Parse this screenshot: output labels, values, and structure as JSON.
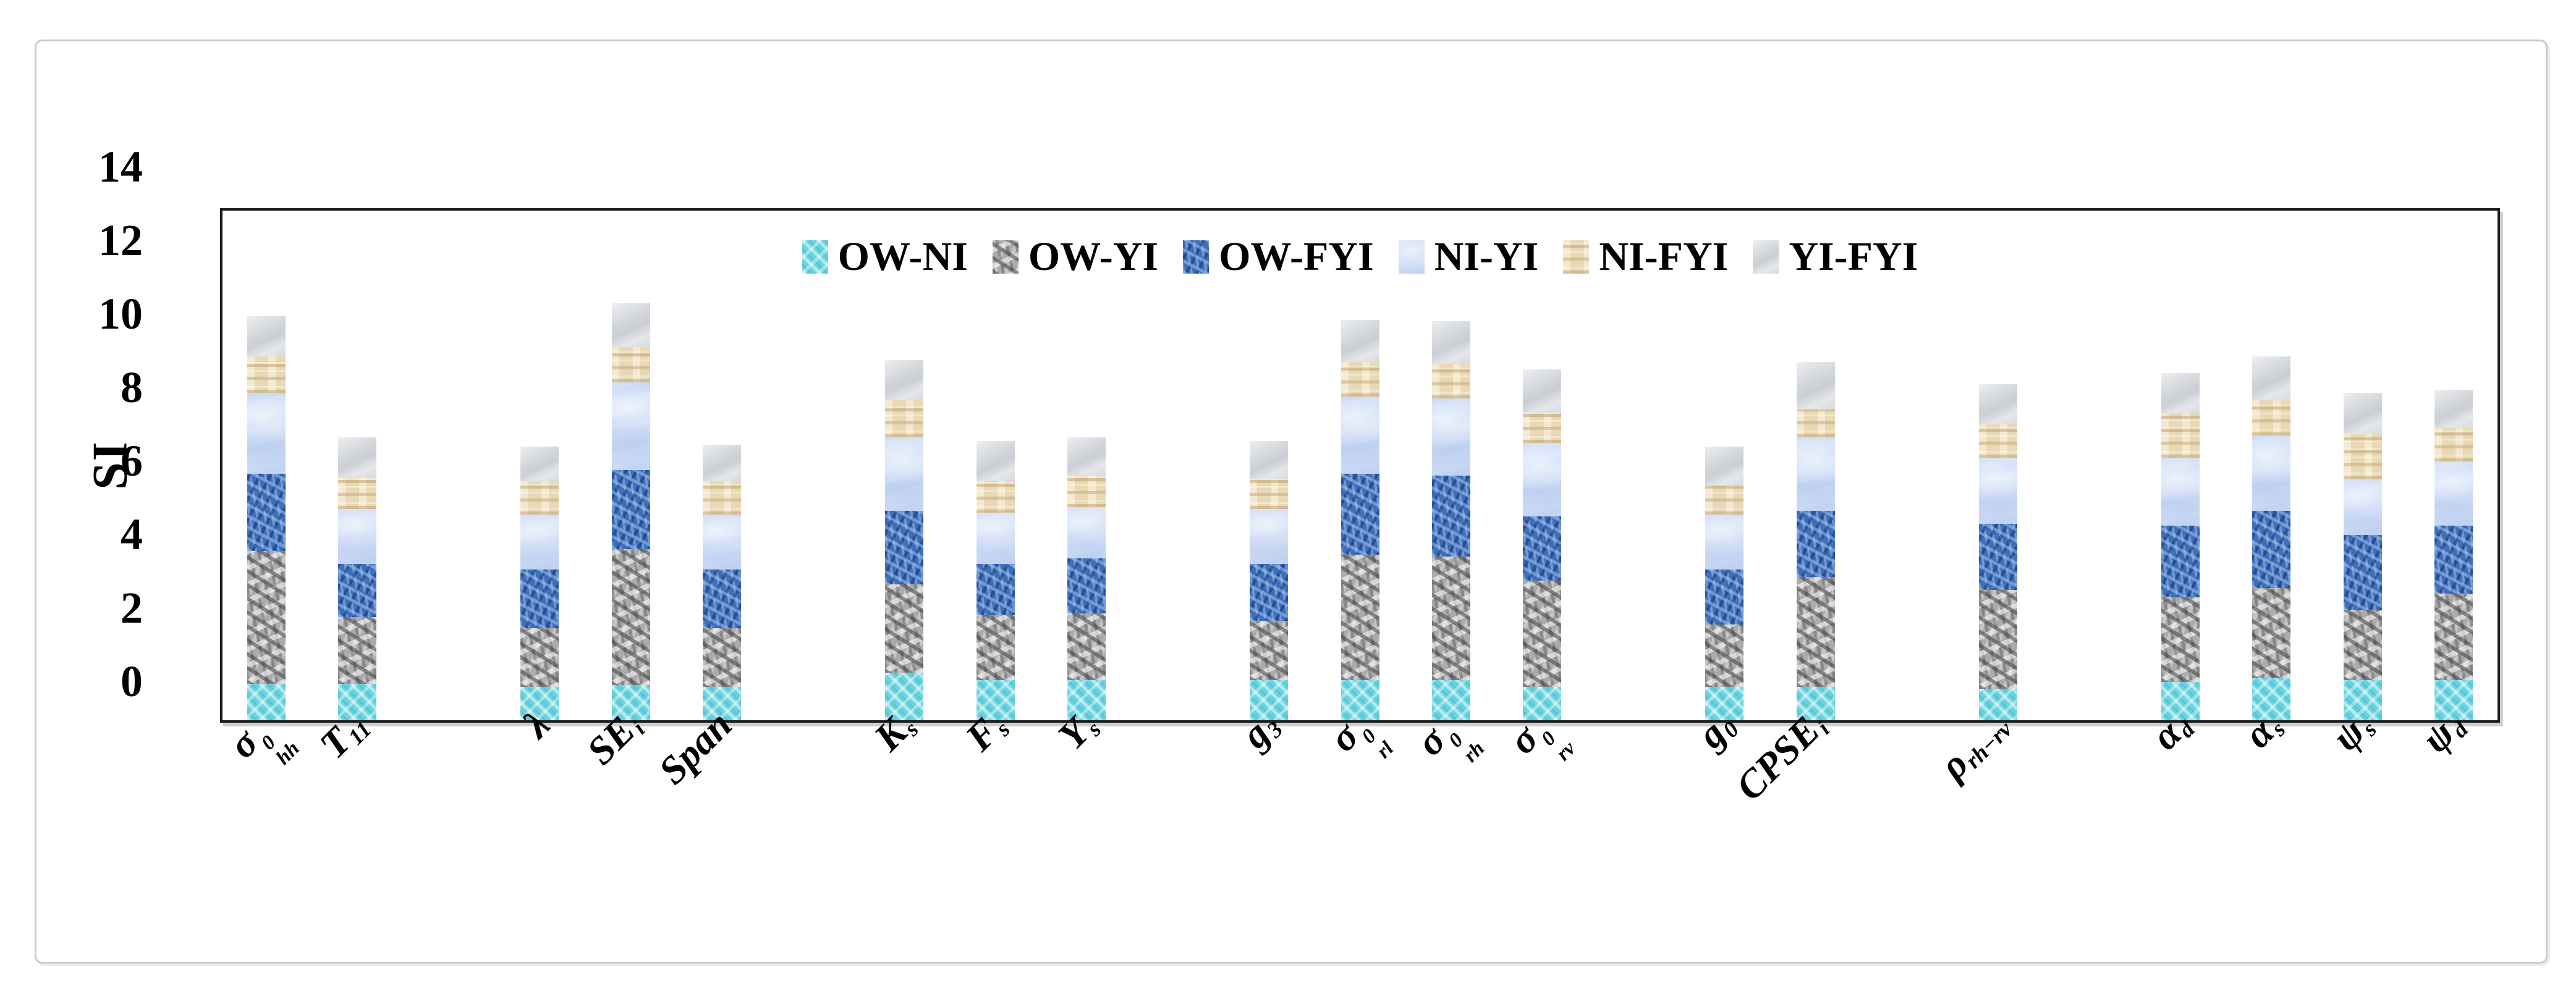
{
  "figure": {
    "kind": "stacked-bar-sensitivity-figure"
  },
  "axis": {
    "y_title": "SI"
  },
  "chart_data": {
    "type": "bar",
    "stacked": true,
    "title": "",
    "xlabel": "",
    "ylabel": "SI",
    "ylim": [
      0,
      14
    ],
    "ytick_step": 2,
    "yticks": [
      0,
      2,
      4,
      6,
      8,
      10,
      12,
      14
    ],
    "grid": false,
    "legend_position": "top-center-inside",
    "categories": [
      "σ0hh",
      "T11",
      "λ",
      "SEi",
      "Span",
      "Ks",
      "Fs",
      "Ys",
      "g3",
      "σ0rl",
      "σ0rh",
      "σ0rv",
      "g0",
      "CPSEi",
      "ρrh−rv",
      "αd",
      "αs",
      "ψs",
      "ψd"
    ],
    "categories_rich": [
      {
        "base": "σ",
        "sup": "0",
        "sub": "hh",
        "slot": 0
      },
      {
        "base": "T",
        "sub": "11",
        "slot": 1
      },
      {
        "base": "λ",
        "slot": 3
      },
      {
        "base": "SE",
        "sub": "i",
        "slot": 4
      },
      {
        "base": "Span",
        "slot": 5
      },
      {
        "base": "K",
        "sub": "s",
        "slot": 7
      },
      {
        "base": "F",
        "sub": "s",
        "slot": 8
      },
      {
        "base": "Y",
        "sub": "s",
        "slot": 9
      },
      {
        "base": "g",
        "sub": "3",
        "slot": 11
      },
      {
        "base": "σ",
        "sup": "0",
        "sub": "rl",
        "slot": 12
      },
      {
        "base": "σ",
        "sup": "0",
        "sub": "rh",
        "slot": 13
      },
      {
        "base": "σ",
        "sup": "0",
        "sub": "rv",
        "slot": 14
      },
      {
        "base": "g",
        "sub": "0",
        "slot": 16
      },
      {
        "base": "CPSE",
        "sub": "i",
        "slot": 17
      },
      {
        "base": "ρ",
        "sub": "rh−rv",
        "slot": 19
      },
      {
        "base": "α",
        "sub": "d",
        "slot": 21
      },
      {
        "base": "α",
        "sub": "s",
        "slot": 22
      },
      {
        "base": "ψ",
        "sub": "s",
        "slot": 23
      },
      {
        "base": "ψ",
        "sub": "d",
        "slot": 24
      }
    ],
    "series": [
      {
        "name": "OW-NI",
        "key": "ow-ni",
        "color": "#68d3e0",
        "values": [
          1.0,
          1.0,
          0.9,
          0.95,
          0.9,
          1.3,
          1.1,
          1.1,
          1.1,
          1.1,
          1.1,
          0.9,
          0.9,
          0.9,
          0.85,
          1.05,
          1.15,
          1.1,
          1.1
        ]
      },
      {
        "name": "OW-YI",
        "key": "ow-yi",
        "color": "#ababab",
        "values": [
          3.6,
          1.8,
          1.6,
          3.7,
          1.6,
          2.4,
          1.75,
          1.8,
          1.6,
          3.4,
          3.35,
          2.9,
          1.7,
          3.0,
          2.7,
          2.3,
          2.45,
          1.9,
          2.35
        ]
      },
      {
        "name": "OW-FYI",
        "key": "ow-fyi",
        "color": "#3d6fba",
        "values": [
          2.1,
          1.45,
          1.6,
          2.15,
          1.6,
          2.0,
          1.4,
          1.5,
          1.55,
          2.2,
          2.2,
          1.75,
          1.5,
          1.8,
          1.8,
          1.95,
          2.1,
          2.05,
          1.85
        ]
      },
      {
        "name": "NI-YI",
        "key": "ni-yi",
        "color": "#cfdef6",
        "values": [
          2.2,
          1.5,
          1.5,
          2.4,
          1.5,
          2.0,
          1.4,
          1.4,
          1.5,
          2.1,
          2.1,
          2.0,
          1.5,
          2.0,
          1.8,
          1.85,
          2.05,
          1.5,
          1.75
        ]
      },
      {
        "name": "NI-FYI",
        "key": "ni-fyi",
        "color": "#e8d8b4",
        "values": [
          1.0,
          0.85,
          0.9,
          0.95,
          0.9,
          1.0,
          0.85,
          0.85,
          0.8,
          0.95,
          0.95,
          0.8,
          0.8,
          0.75,
          0.9,
          1.2,
          0.95,
          1.25,
          0.9
        ]
      },
      {
        "name": "YI-FYI",
        "key": "yi-fyi",
        "color": "#d7dadd",
        "values": [
          1.1,
          1.1,
          0.95,
          1.2,
          1.0,
          1.1,
          1.1,
          1.05,
          1.05,
          1.15,
          1.15,
          1.2,
          1.05,
          1.3,
          1.1,
          1.1,
          1.2,
          1.1,
          1.05
        ]
      }
    ]
  }
}
